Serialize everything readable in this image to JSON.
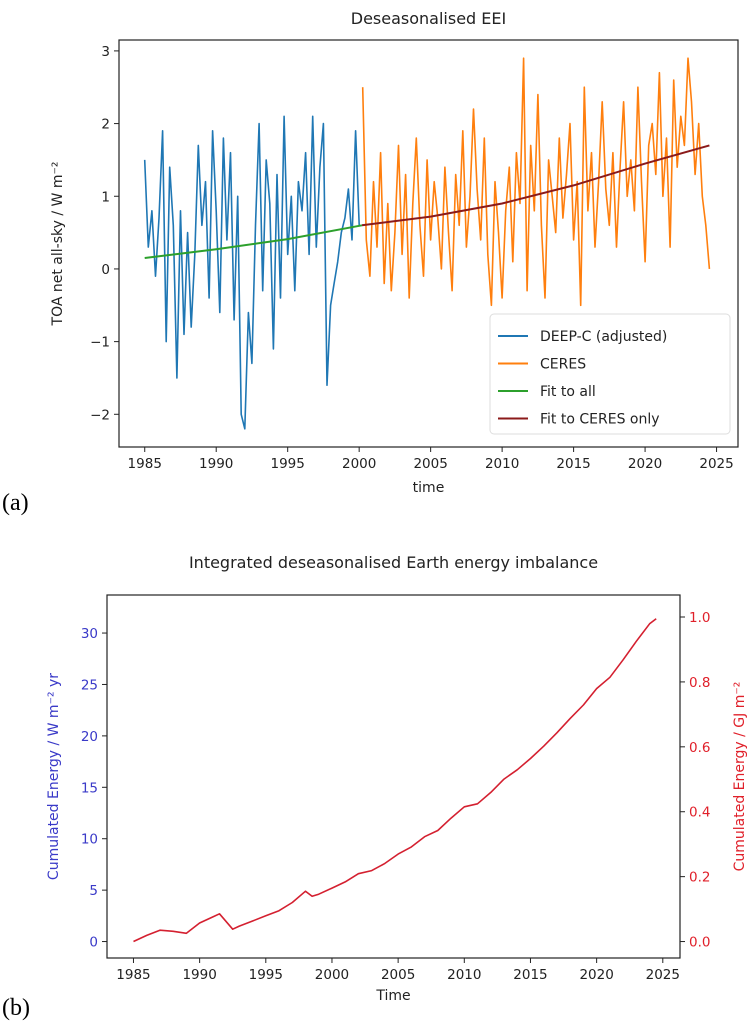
{
  "chart_data": [
    {
      "type": "line",
      "panel_label": "(a)",
      "title": "Deseasonalised EEI",
      "xlabel": "time",
      "ylabel": "TOA net all-sky / W m⁻²",
      "xlim": [
        1983.2,
        2026.5
      ],
      "ylim": [
        -2.45,
        3.15
      ],
      "xticks": [
        1985,
        1990,
        1995,
        2000,
        2005,
        2010,
        2015,
        2020,
        2025
      ],
      "yticks": [
        -2,
        -1,
        0,
        1,
        2,
        3
      ],
      "ytick_labels": [
        "−2",
        "−1",
        "0",
        "1",
        "2",
        "3"
      ],
      "legend_position": "lower-right",
      "series": [
        {
          "name": "DEEP-C (adjusted)",
          "color": "#1f77b4",
          "x_start": 1985.0,
          "x_step": 0.25,
          "values": [
            1.5,
            0.3,
            0.8,
            -0.1,
            0.7,
            1.9,
            -1.0,
            1.4,
            0.6,
            -1.5,
            0.8,
            -0.9,
            0.5,
            -0.8,
            0.2,
            1.7,
            0.6,
            1.2,
            -0.4,
            1.9,
            0.8,
            -0.6,
            1.8,
            0.4,
            1.6,
            -0.7,
            1.0,
            -2.0,
            -2.2,
            -0.6,
            -1.3,
            0.6,
            2.0,
            -0.3,
            1.5,
            0.9,
            -1.1,
            1.3,
            -0.4,
            2.1,
            0.2,
            1.0,
            -0.3,
            1.2,
            0.8,
            1.6,
            0.2,
            2.1,
            0.3,
            1.4,
            2.0,
            -1.6,
            -0.5,
            -0.2,
            0.1,
            0.5,
            0.7,
            1.1,
            0.4,
            1.9,
            0.6
          ]
        },
        {
          "name": "CERES",
          "color": "#ff7f0e",
          "x_start": 2000.25,
          "x_step": 0.25,
          "values": [
            2.5,
            0.4,
            -0.1,
            1.2,
            0.3,
            1.6,
            -0.2,
            0.9,
            -0.3,
            0.5,
            1.7,
            0.2,
            1.3,
            -0.4,
            0.9,
            1.8,
            0.6,
            -0.1,
            1.5,
            0.4,
            1.2,
            0.7,
            0.0,
            1.4,
            0.5,
            -0.3,
            1.3,
            0.6,
            1.9,
            0.3,
            1.0,
            2.2,
            1.1,
            0.4,
            1.8,
            0.2,
            -0.5,
            1.2,
            0.5,
            -0.4,
            0.8,
            1.4,
            0.1,
            1.6,
            0.9,
            2.9,
            -0.3,
            1.7,
            0.8,
            2.4,
            0.6,
            -0.4,
            1.5,
            1.0,
            0.5,
            1.8,
            0.7,
            1.3,
            2.0,
            0.4,
            1.2,
            -0.5,
            2.5,
            0.8,
            1.6,
            0.3,
            1.2,
            2.3,
            1.1,
            0.6,
            1.6,
            0.3,
            1.4,
            2.3,
            1.0,
            1.5,
            0.8,
            2.5,
            1.2,
            0.1,
            1.7,
            2.0,
            1.3,
            2.7,
            1.0,
            1.8,
            0.3,
            2.6,
            1.4,
            2.1,
            1.7,
            2.9,
            2.3,
            1.3,
            2.0,
            1.0,
            0.6,
            0.0
          ]
        },
        {
          "name": "Fit to all",
          "color": "#2ca02c",
          "x": [
            1985,
            1990,
            1995,
            2000.2
          ],
          "values": [
            0.15,
            0.27,
            0.41,
            0.6
          ]
        },
        {
          "name": "Fit to CERES only",
          "color": "#8b1a1a",
          "x": [
            2000.2,
            2005,
            2010,
            2015,
            2020,
            2024.5
          ],
          "values": [
            0.6,
            0.72,
            0.9,
            1.15,
            1.45,
            1.7
          ]
        }
      ]
    },
    {
      "type": "line",
      "panel_label": "(b)",
      "title": "Integrated deseasonalised Earth energy imbalance",
      "xlabel": "Time",
      "ylabel": "Cumulated Energy / W m⁻² yr",
      "ylabel_right": "Cumulated Energy / GJ m⁻²",
      "xlim": [
        1983.0,
        2026.3
      ],
      "ylim": [
        -1.6,
        33.7
      ],
      "xticks": [
        1985,
        1990,
        1995,
        2000,
        2005,
        2010,
        2015,
        2020,
        2025
      ],
      "yticks": [
        0,
        5,
        10,
        15,
        20,
        25,
        30
      ],
      "yticks_right": [
        0.0,
        0.2,
        0.4,
        0.6,
        0.8,
        1.0
      ],
      "ytick_labels_right": [
        "0.0",
        "0.2",
        "0.4",
        "0.6",
        "0.8",
        "1.0"
      ],
      "right_axis_factor": 31.56,
      "left_axis_color": "#3a3ac8",
      "right_axis_color": "#e0202a",
      "series": [
        {
          "name": "Cumulated energy",
          "color": "#d42030",
          "x": [
            1985,
            1986,
            1987,
            1988,
            1989,
            1990,
            1991,
            1991.5,
            1992.5,
            1993,
            1994,
            1995,
            1996,
            1997,
            1998,
            1998.5,
            1999,
            2000,
            2001,
            2002,
            2003,
            2004,
            2005,
            2006,
            2007,
            2008,
            2009,
            2010,
            2011,
            2012,
            2013,
            2014,
            2015,
            2016,
            2017,
            2018,
            2019,
            2020,
            2021,
            2022,
            2023,
            2024,
            2024.5
          ],
          "values": [
            0,
            0.6,
            1.1,
            1.0,
            0.8,
            1.8,
            2.4,
            2.7,
            1.2,
            1.5,
            2.0,
            2.5,
            3.0,
            3.8,
            4.9,
            4.4,
            4.6,
            5.2,
            5.8,
            6.6,
            6.9,
            7.6,
            8.5,
            9.2,
            10.2,
            10.8,
            12.0,
            13.1,
            13.4,
            14.5,
            15.8,
            16.7,
            17.8,
            19.0,
            20.3,
            21.7,
            23.0,
            24.6,
            25.7,
            27.4,
            29.2,
            30.9,
            31.4
          ]
        }
      ]
    }
  ]
}
